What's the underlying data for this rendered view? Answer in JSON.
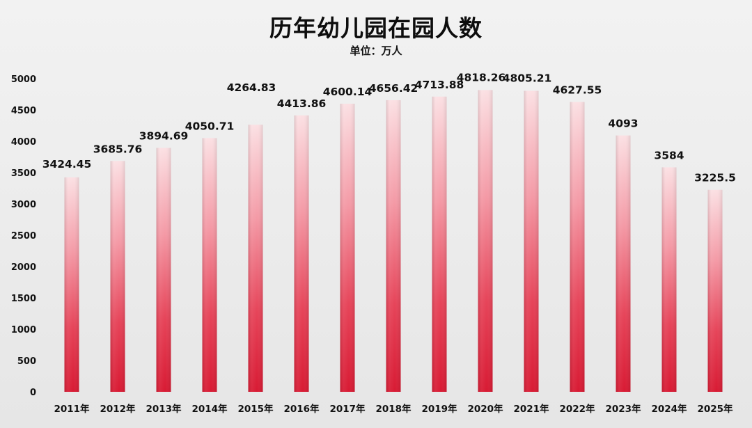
{
  "chart_data": {
    "type": "bar",
    "title": "历年幼儿园在园人数",
    "subtitle": "单位：万人",
    "categories": [
      "2011年",
      "2012年",
      "2013年",
      "2014年",
      "2015年",
      "2016年",
      "2017年",
      "2018年",
      "2019年",
      "2020年",
      "2021年",
      "2022年",
      "2023年",
      "2024年",
      "2025年"
    ],
    "values": [
      3424.45,
      3685.76,
      3894.69,
      4050.71,
      4264.83,
      4413.86,
      4600.14,
      4656.42,
      4713.88,
      4818.26,
      4805.21,
      4627.55,
      4093,
      3584,
      3225.5
    ],
    "data_labels": [
      "3424.45",
      "3685.76",
      "3894.69",
      "4050.71",
      "4264.83",
      "4413.86",
      "4600.14",
      "4656.42",
      "4713.88",
      "4818.26",
      "4805.21",
      "4627.55",
      "4093",
      "3584",
      "3225.5"
    ],
    "y_ticks": [
      "0",
      "500",
      "1000",
      "1500",
      "2000",
      "2500",
      "3000",
      "3500",
      "4000",
      "4500",
      "5000"
    ],
    "ylim": [
      0,
      5000
    ],
    "grid": false,
    "legend": "none",
    "colors": {
      "bar_top": "#f9d6da",
      "bar_mid": "#ec5a6d",
      "bar_bottom": "#d91a33",
      "background": "#ececec"
    }
  }
}
